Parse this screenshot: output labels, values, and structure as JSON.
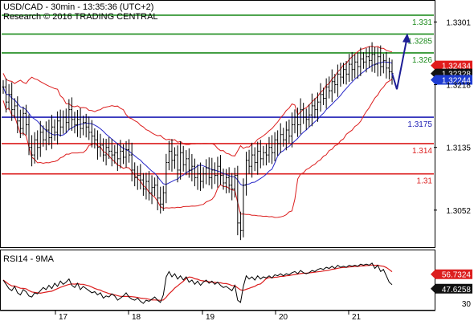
{
  "header": {
    "title": "USD/CAD - 30min - 13:35:36 (UTC+2)",
    "subtitle": "Research © 2016 TRADING CENTRAL"
  },
  "colors": {
    "resistance": "#1e8c1e",
    "pivot": "#1e1eb4",
    "support": "#dc1e1e",
    "price": "#000000",
    "bollinger": "#dc1e1e",
    "moving_average": "#2828c8",
    "rsi": "#000000",
    "rsi_ma": "#dc1e1e",
    "forecast_arrow": "#1e1e96",
    "tag_red": "#e01b1b",
    "tag_black": "#111111",
    "tag_blue": "#1e3cd2"
  },
  "chart_data": [
    {
      "type": "candlestick",
      "title": "USD/CAD - 30min - 13:35:36 (UTC+2)",
      "ylim": [
        1.3003,
        1.3329
      ],
      "yticks": [
        1.3052,
        1.3135,
        1.3218,
        1.3301
      ],
      "ytick_labels": [
        "1.3052",
        "1.3135",
        "1.3218",
        "1.3301"
      ],
      "x_categories": [
        "17",
        "18",
        "19",
        "20",
        "21"
      ],
      "grid": false,
      "key_levels": [
        {
          "label": "1.331",
          "value": 1.331,
          "kind": "resistance"
        },
        {
          "label": "1.3285",
          "value": 1.3285,
          "kind": "resistance"
        },
        {
          "label": "1.326",
          "value": 1.326,
          "kind": "resistance"
        },
        {
          "label": "1.3175",
          "value": 1.3175,
          "kind": "pivot"
        },
        {
          "label": "1.314",
          "value": 1.314,
          "kind": "support"
        },
        {
          "label": "1.31",
          "value": 1.31,
          "kind": "support"
        }
      ],
      "price_tags": [
        {
          "label": "1.32434",
          "value": 1.32434,
          "kind": "red"
        },
        {
          "label": "1.32328",
          "value": 1.32328,
          "kind": "black"
        },
        {
          "label": "1.32244",
          "value": 1.32244,
          "kind": "blue"
        }
      ],
      "close_series": [
        1.3215,
        1.3195,
        1.3205,
        1.3185,
        1.319,
        1.317,
        1.316,
        1.318,
        1.3165,
        1.3135,
        1.3125,
        1.3145,
        1.3135,
        1.3155,
        1.3145,
        1.3158,
        1.3148,
        1.3162,
        1.3155,
        1.317,
        1.3162,
        1.3175,
        1.3168,
        1.3185,
        1.3172,
        1.3165,
        1.3172,
        1.316,
        1.3168,
        1.3162,
        1.3155,
        1.315,
        1.3145,
        1.3135,
        1.3138,
        1.3125,
        1.3135,
        1.313,
        1.3125,
        1.3128,
        1.312,
        1.313,
        1.3122,
        1.3132,
        1.3125,
        1.3105,
        1.3095,
        1.3098,
        1.3092,
        1.308,
        1.309,
        1.3075,
        1.3082,
        1.3085,
        1.3068,
        1.306,
        1.3075,
        1.3115,
        1.313,
        1.3118,
        1.3125,
        1.3105,
        1.3128,
        1.3112,
        1.312,
        1.3105,
        1.311,
        1.3095,
        1.31,
        1.309,
        1.31,
        1.3108,
        1.3095,
        1.3105,
        1.3098,
        1.311,
        1.3098,
        1.3088,
        1.3095,
        1.3085,
        1.308,
        1.3098,
        1.3035,
        1.3025,
        1.3085,
        1.3118,
        1.311,
        1.3125,
        1.3115,
        1.313,
        1.312,
        1.3128,
        1.3125,
        1.3135,
        1.3128,
        1.3145,
        1.314,
        1.3152,
        1.3145,
        1.3158,
        1.315,
        1.3165,
        1.3175,
        1.3165,
        1.3185,
        1.3175,
        1.3172,
        1.3178,
        1.319,
        1.3185,
        1.3195,
        1.3205,
        1.32,
        1.3215,
        1.321,
        1.3222,
        1.3218,
        1.3232,
        1.3228,
        1.3238,
        1.3232,
        1.3245,
        1.3238,
        1.3248,
        1.3242,
        1.3252,
        1.3248,
        1.3255,
        1.325,
        1.3258,
        1.3245,
        1.3255,
        1.3242,
        1.325,
        1.324,
        1.3235,
        1.3233
      ],
      "forecast": {
        "from": 1.3233,
        "low": 1.3212,
        "high": 1.3283
      }
    },
    {
      "type": "line",
      "title": "RSI14 - 9MA",
      "ylim": [
        24,
        80
      ],
      "yticks": [
        30,
        56.7324
      ],
      "ytick_labels": [
        "30",
        "56.7324"
      ],
      "series": [
        {
          "name": "RSI14",
          "value_tag": "47.6258"
        },
        {
          "name": "9MA",
          "value_tag": "56.7324"
        }
      ],
      "rsi_values": [
        52,
        48,
        44,
        42,
        46,
        40,
        38,
        43,
        41,
        37,
        36,
        40,
        39,
        42,
        45,
        43,
        47,
        44,
        49,
        46,
        51,
        48,
        50,
        53,
        47,
        45,
        49,
        43,
        46,
        44,
        42,
        40,
        41,
        38,
        40,
        35,
        37,
        36,
        39,
        37,
        33,
        35,
        37,
        40,
        36,
        34,
        33,
        35,
        32,
        30,
        33,
        32,
        34,
        36,
        33,
        31,
        38,
        55,
        60,
        55,
        58,
        53,
        56,
        52,
        55,
        50,
        52,
        48,
        51,
        47,
        50,
        52,
        49,
        51,
        48,
        50,
        47,
        45,
        46,
        44,
        42,
        47,
        33,
        31,
        46,
        56,
        53,
        55,
        52,
        56,
        53,
        55,
        54,
        56,
        54,
        57,
        56,
        58,
        56,
        58,
        57,
        59,
        60,
        58,
        61,
        59,
        58,
        59,
        61,
        60,
        62,
        63,
        62,
        64,
        63,
        65,
        63,
        66,
        64,
        65,
        64,
        66,
        65,
        66,
        65,
        67,
        66,
        67,
        66,
        68,
        63,
        66,
        60,
        62,
        56,
        50,
        47.6258
      ]
    }
  ]
}
